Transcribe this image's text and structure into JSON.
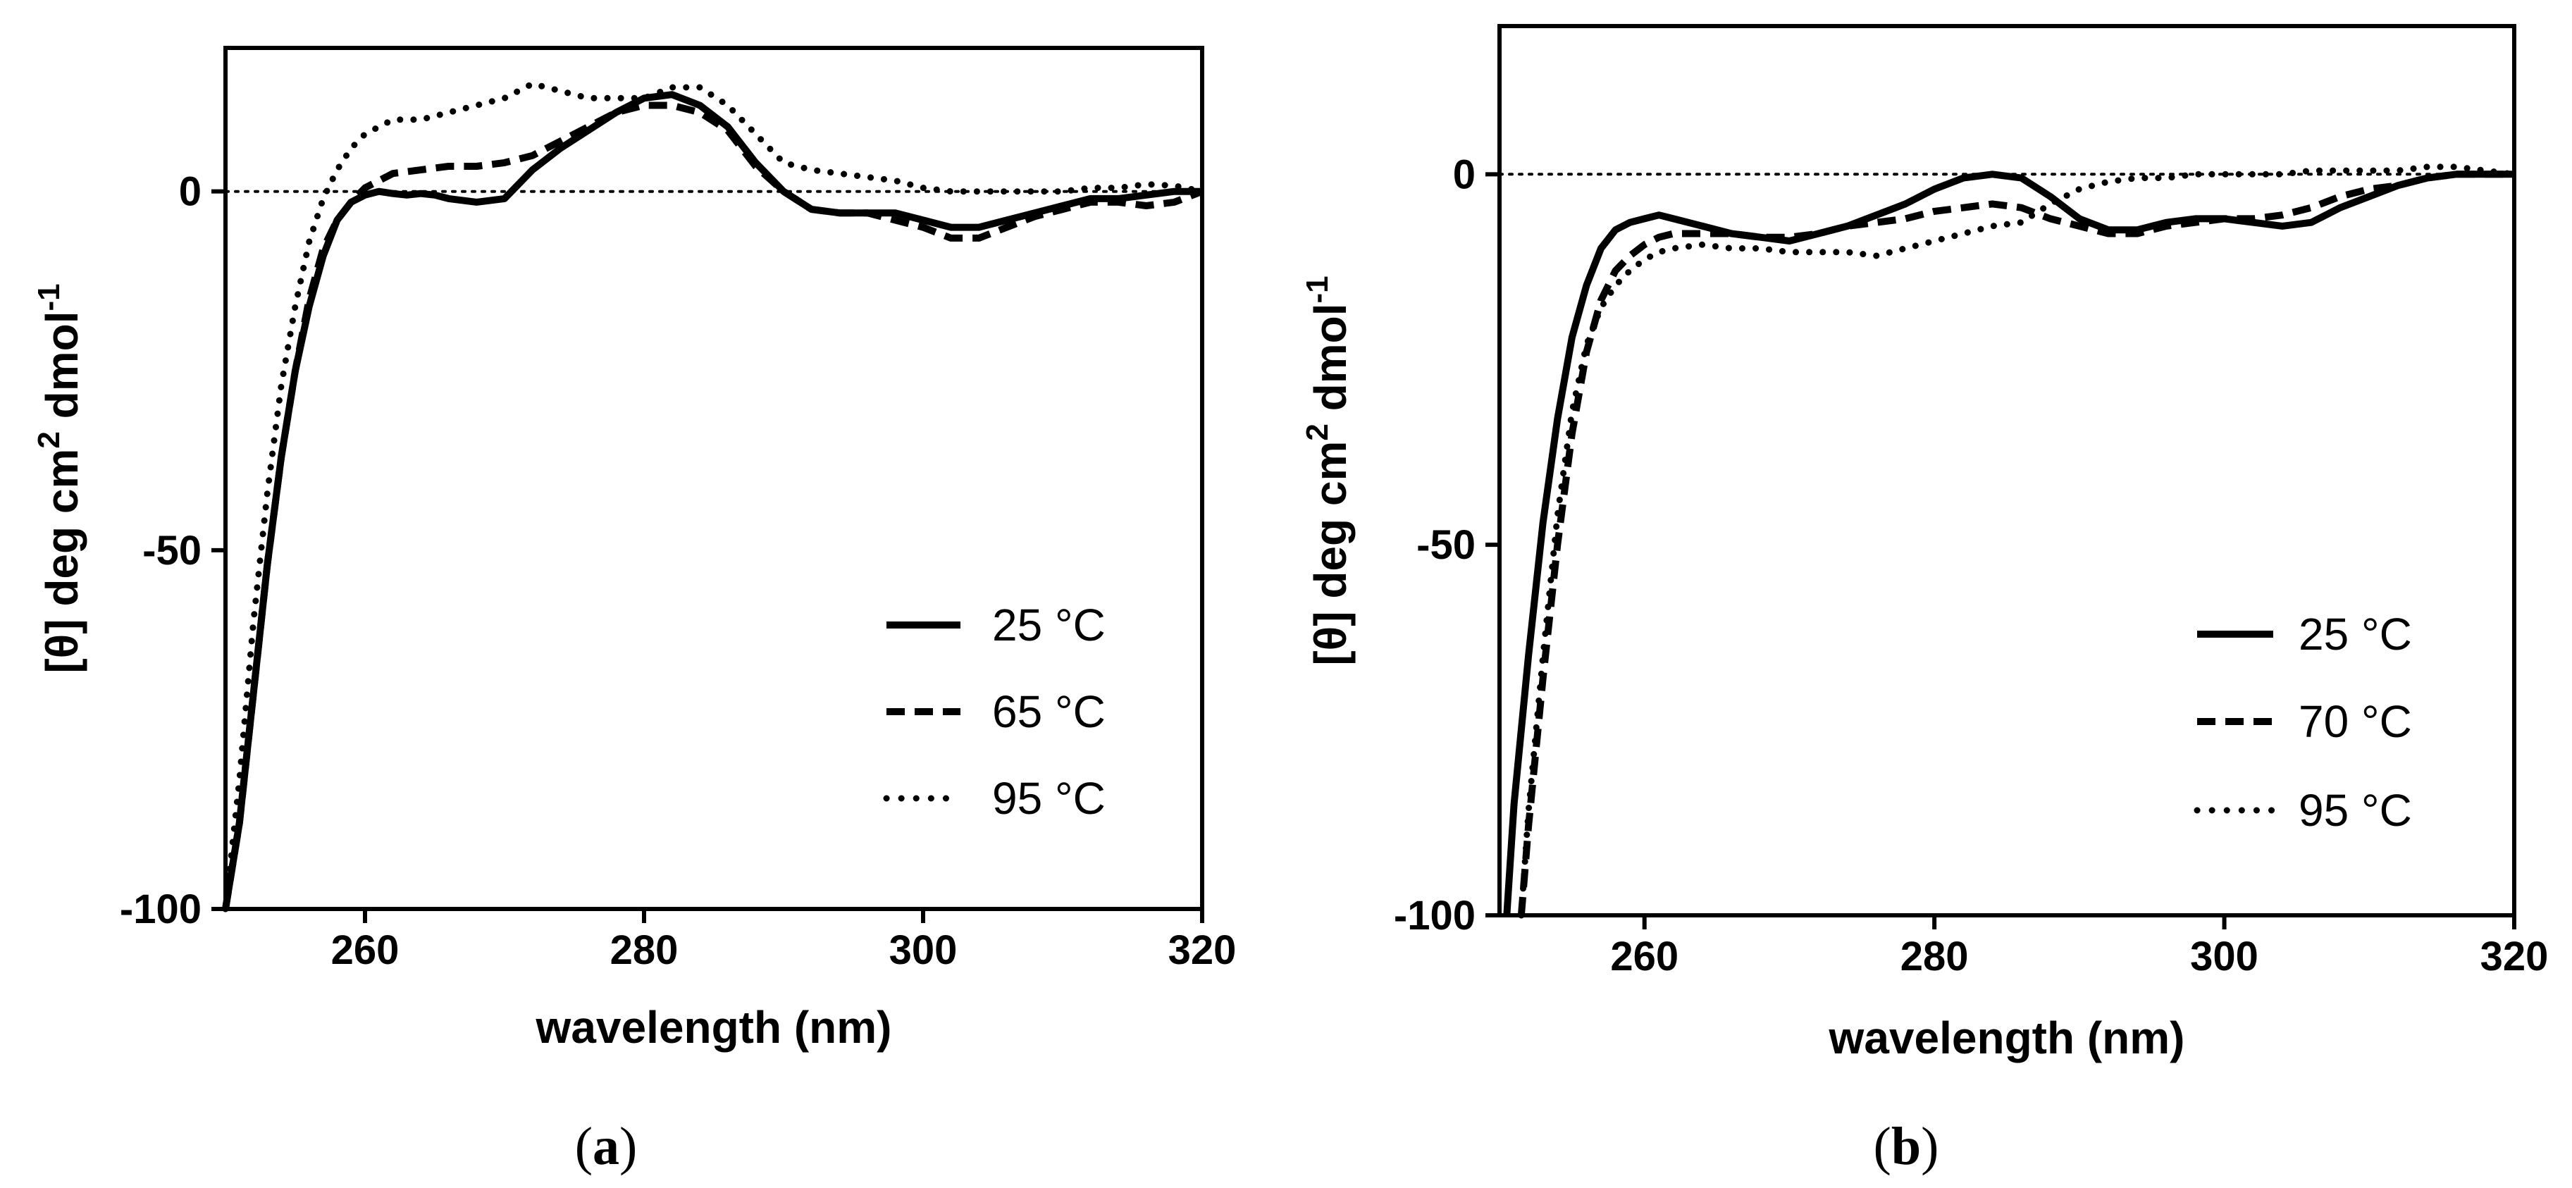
{
  "chart_data": [
    {
      "type": "line",
      "panel": "a",
      "panel_label": "a",
      "xlabel": "wavelength (nm)",
      "ylabel": "[θ] deg cm",
      "ylabel_sup1": "2",
      "ylabel_mid": " dmol",
      "ylabel_sup2": "-1",
      "xlim": [
        250,
        320
      ],
      "ylim": [
        -100,
        20
      ],
      "xticks": [
        260,
        280,
        300,
        320
      ],
      "xtick_labels": [
        "260",
        "280",
        "300",
        "320"
      ],
      "yticks": [
        -100,
        -50,
        0
      ],
      "ytick_labels": [
        "-100",
        "-50",
        "0"
      ],
      "zero_line": true,
      "legend_position": "lower-right",
      "series": [
        {
          "name": "25 °C",
          "style": "solid",
          "x": [
            250,
            251,
            252,
            253,
            254,
            255,
            256,
            257,
            258,
            259,
            260,
            261,
            262,
            263,
            264,
            265,
            266,
            268,
            270,
            271,
            272,
            274,
            276,
            278,
            280,
            282,
            284,
            286,
            288,
            290,
            292,
            294,
            296,
            298,
            300,
            302,
            304,
            306,
            308,
            310,
            312,
            314,
            316,
            318,
            320
          ],
          "y": [
            -100,
            -88,
            -70,
            -52,
            -37,
            -25,
            -16,
            -9,
            -4,
            -1.5,
            -0.5,
            0,
            -0.3,
            -0.5,
            -0.3,
            -0.5,
            -1,
            -1.5,
            -1,
            1,
            3,
            6,
            8.5,
            11,
            13,
            13.5,
            12,
            9,
            4,
            0,
            -2.5,
            -3,
            -3,
            -3,
            -4,
            -5,
            -5,
            -4,
            -3,
            -2,
            -1,
            -1,
            -0.5,
            0,
            0
          ]
        },
        {
          "name": "65 °C",
          "style": "dashed",
          "x": [
            250,
            251,
            252,
            253,
            254,
            255,
            256,
            257,
            258,
            259,
            260,
            261,
            262,
            264,
            266,
            268,
            270,
            272,
            274,
            276,
            278,
            280,
            282,
            284,
            286,
            288,
            290,
            292,
            294,
            296,
            298,
            300,
            302,
            304,
            306,
            308,
            310,
            312,
            314,
            316,
            318,
            320
          ],
          "y": [
            -100,
            -88,
            -70,
            -52,
            -37,
            -25,
            -15,
            -8,
            -4,
            -1.5,
            0.5,
            1.5,
            2.5,
            3,
            3.5,
            3.5,
            4,
            5,
            7,
            9,
            11,
            12,
            12,
            11,
            8.5,
            3.5,
            0,
            -2.5,
            -3,
            -3,
            -4,
            -5,
            -6.5,
            -6.5,
            -5,
            -3.5,
            -2.5,
            -1.5,
            -1.5,
            -2,
            -1.5,
            0
          ]
        },
        {
          "name": "95 °C",
          "style": "dotted",
          "x": [
            250,
            251,
            252,
            253,
            254,
            255,
            256,
            257,
            258,
            259,
            260,
            261,
            262,
            264,
            266,
            268,
            270,
            272,
            274,
            276,
            278,
            280,
            282,
            284,
            286,
            288,
            290,
            292,
            294,
            296,
            298,
            300,
            302,
            304,
            306,
            308,
            310,
            312,
            314,
            316,
            318,
            320
          ],
          "y": [
            -100,
            -82,
            -60,
            -42,
            -27,
            -16,
            -7,
            -1,
            3,
            6,
            8,
            9,
            10,
            10,
            11,
            12,
            13,
            15,
            14,
            13,
            13,
            13,
            14.5,
            14.5,
            12,
            8,
            4,
            3,
            2.5,
            2,
            1.5,
            0.5,
            0,
            0,
            0,
            0,
            0,
            0.5,
            0.5,
            1,
            0.8,
            0
          ]
        }
      ]
    },
    {
      "type": "line",
      "panel": "b",
      "panel_label": "b",
      "xlabel": "wavelength (nm)",
      "ylabel": "[θ] deg cm",
      "ylabel_sup1": "2",
      "ylabel_mid": " dmol",
      "ylabel_sup2": "-1",
      "xlim": [
        250,
        320
      ],
      "ylim": [
        -100,
        20
      ],
      "xticks": [
        260,
        280,
        300,
        320
      ],
      "xtick_labels": [
        "260",
        "280",
        "300",
        "320"
      ],
      "yticks": [
        -100,
        -50,
        0
      ],
      "ytick_labels": [
        "-100",
        "-50",
        "0"
      ],
      "zero_line": true,
      "legend_position": "lower-right",
      "series": [
        {
          "name": "25 °C",
          "style": "solid",
          "x": [
            250.5,
            251,
            252,
            253,
            254,
            255,
            256,
            257,
            258,
            259,
            260,
            261,
            262,
            264,
            266,
            268,
            270,
            272,
            274,
            276,
            278,
            280,
            282,
            284,
            286,
            288,
            290,
            292,
            294,
            296,
            298,
            300,
            302,
            304,
            306,
            308,
            310,
            312,
            314,
            316,
            318,
            320
          ],
          "y": [
            -100,
            -85,
            -65,
            -47,
            -33,
            -22,
            -15,
            -10,
            -7.5,
            -6.5,
            -6,
            -5.5,
            -6,
            -7,
            -8,
            -8.5,
            -9,
            -8,
            -7,
            -5.5,
            -4,
            -2,
            -0.5,
            0,
            -0.5,
            -3,
            -6,
            -7.5,
            -7.5,
            -6.5,
            -6,
            -6,
            -6.5,
            -7,
            -6.5,
            -4.5,
            -3,
            -1.5,
            -0.5,
            0,
            0,
            0
          ]
        },
        {
          "name": "70 °C",
          "style": "dashed",
          "x": [
            251.5,
            252,
            253,
            254,
            255,
            256,
            257,
            258,
            259,
            260,
            261,
            262,
            264,
            266,
            268,
            270,
            272,
            274,
            276,
            278,
            280,
            282,
            284,
            286,
            288,
            290,
            292,
            294,
            296,
            298,
            300,
            302,
            304,
            306,
            308,
            310,
            312,
            314,
            316,
            318,
            320
          ],
          "y": [
            -100,
            -88,
            -68,
            -50,
            -35,
            -24,
            -17,
            -13,
            -11,
            -9.5,
            -8.5,
            -8,
            -8,
            -8,
            -8.5,
            -8.5,
            -8,
            -7,
            -6.5,
            -6,
            -5,
            -4.5,
            -4,
            -4.5,
            -6,
            -7,
            -8,
            -8,
            -7,
            -6.5,
            -6,
            -6,
            -5.5,
            -4.5,
            -3,
            -2,
            -1.5,
            -0.5,
            0,
            0,
            0
          ]
        },
        {
          "name": "95 °C",
          "style": "dotted",
          "x": [
            251.5,
            252,
            253,
            254,
            255,
            256,
            257,
            258,
            259,
            260,
            261,
            262,
            264,
            266,
            268,
            270,
            272,
            274,
            276,
            278,
            280,
            282,
            284,
            286,
            288,
            290,
            292,
            294,
            296,
            298,
            300,
            302,
            304,
            306,
            308,
            310,
            312,
            314,
            316,
            318,
            320
          ],
          "y": [
            -100,
            -86,
            -65,
            -46,
            -32,
            -23,
            -18,
            -15,
            -13,
            -11.5,
            -10.5,
            -10,
            -9.5,
            -10,
            -10,
            -10.5,
            -10.5,
            -10.5,
            -11,
            -10,
            -9,
            -8,
            -7,
            -6.5,
            -4,
            -2,
            -1,
            -0.5,
            -0.5,
            0,
            0,
            0,
            0,
            0.5,
            0.5,
            0.5,
            0.5,
            1,
            1,
            0.5,
            0
          ]
        }
      ]
    }
  ]
}
